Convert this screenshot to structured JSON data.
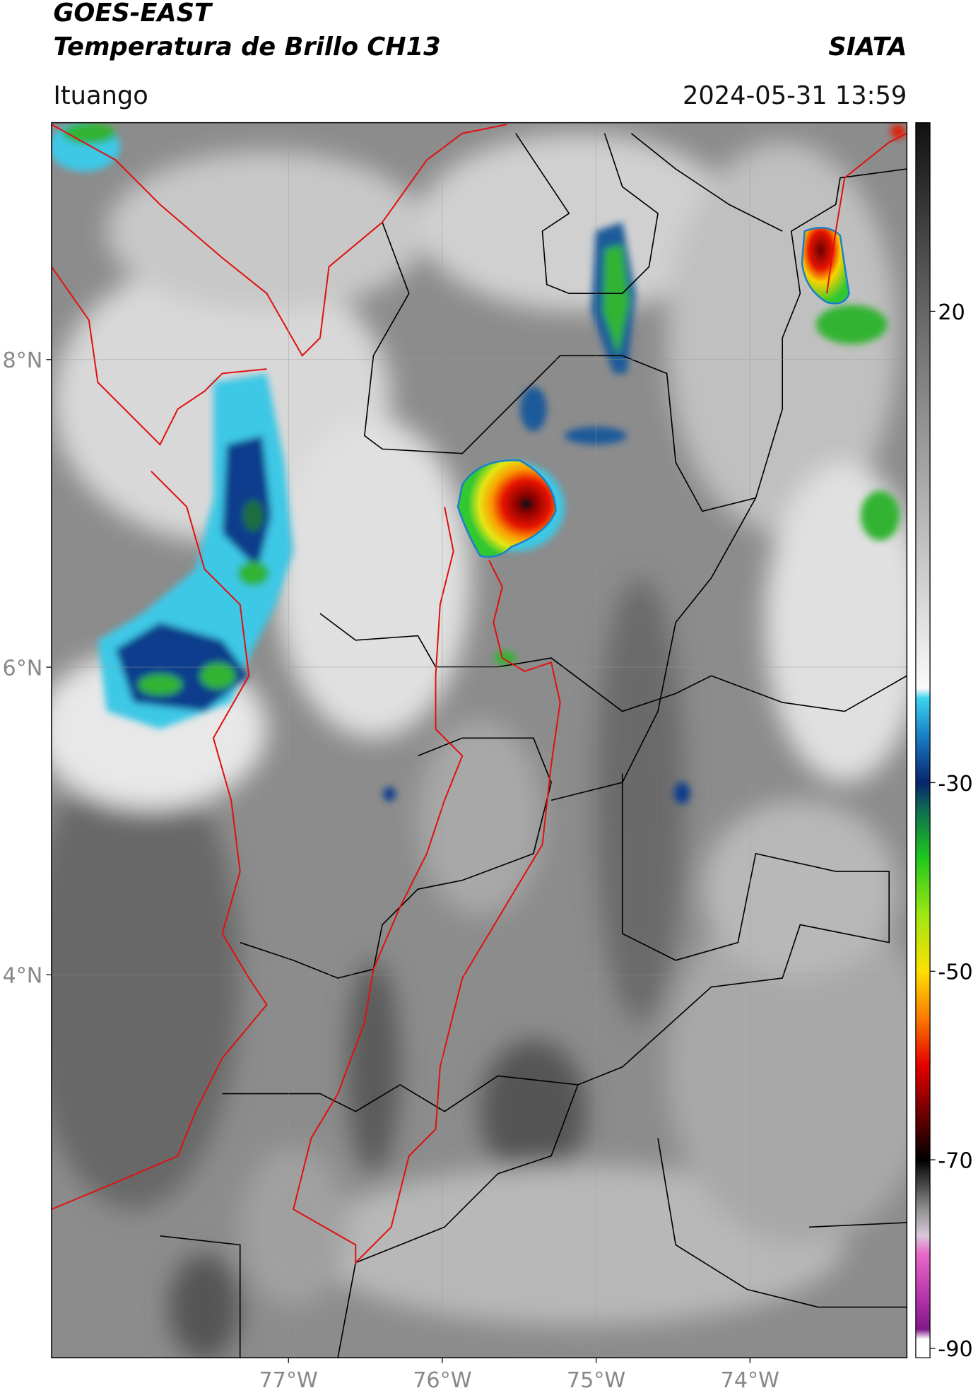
{
  "header": {
    "title": "GOES-EAST",
    "subtitle": "Temperatura de Brillo CH13",
    "org": "SIATA",
    "location": "Ituango",
    "datetime": "2024-05-31 13:59"
  },
  "map": {
    "lonlim": [
      -78.54,
      -72.98
    ],
    "latlim": [
      1.51,
      9.54
    ],
    "lonticks": [
      {
        "value": -77,
        "label": "77°W"
      },
      {
        "value": -76,
        "label": "76°W"
      },
      {
        "value": -75,
        "label": "75°W"
      },
      {
        "value": -74,
        "label": "74°W"
      }
    ],
    "latticks": [
      {
        "value": 8,
        "label": "8°N"
      },
      {
        "value": 6,
        "label": "6°N"
      },
      {
        "value": 4,
        "label": "4°N"
      }
    ],
    "grid": true
  },
  "colorbar": {
    "lim": [
      -91,
      40
    ],
    "ticks": [
      20,
      -30,
      -50,
      -70,
      -90
    ]
  }
}
